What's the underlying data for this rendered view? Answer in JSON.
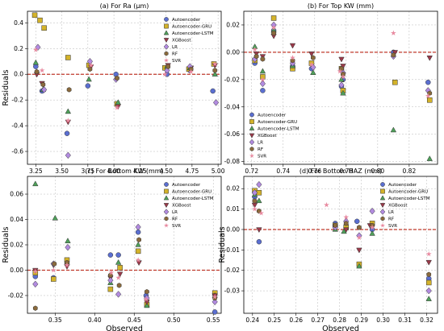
{
  "legend_entries": [
    {
      "name": "Autoencoder",
      "color": "#5b6fd1",
      "marker": "circle"
    },
    {
      "name": "Autoencoder-GRU",
      "color": "#d4b32a",
      "marker": "square"
    },
    {
      "name": "Autoencoder-LSTM",
      "color": "#4fa05a",
      "marker": "triangle-up"
    },
    {
      "name": "XGBoost",
      "color": "#9b3a4a",
      "marker": "triangle-down"
    },
    {
      "name": "LR",
      "color": "#b28be0",
      "marker": "diamond"
    },
    {
      "name": "RF",
      "color": "#8a6a3c",
      "marker": "hexagon"
    },
    {
      "name": "SVR",
      "color": "#e88aa0",
      "marker": "star"
    }
  ],
  "chart_data": [
    {
      "type": "scatter",
      "title": "(a) For Ra (μm)",
      "xlabel": "",
      "ylabel": "Residuals",
      "xlim": [
        3.17,
        5.03
      ],
      "ylim": [
        -0.7,
        0.49
      ],
      "xticks": [
        "3.25",
        "3.50",
        "3.75",
        "4.00",
        "4.25",
        "4.50",
        "4.75",
        "5.00"
      ],
      "xtick_values": [
        3.25,
        3.5,
        3.75,
        4.0,
        4.25,
        4.5,
        4.75,
        5.0
      ],
      "yticks": [
        "-0.6",
        "-0.4",
        "-0.2",
        "0.0",
        "0.2",
        "0.4"
      ],
      "ytick_values": [
        -0.6,
        -0.4,
        -0.2,
        0.0,
        0.2,
        0.4
      ],
      "legend": "top-right",
      "grid": true,
      "series": [
        {
          "name": "Autoencoder",
          "x": [
            3.25,
            3.31,
            3.55,
            3.75,
            4.02,
            4.51,
            4.73,
            4.95
          ],
          "y": [
            0.06,
            -0.13,
            -0.46,
            -0.09,
            0.0,
            0.0,
            0.03,
            -0.13
          ]
        },
        {
          "name": "Autoencoder-GRU",
          "x": [
            3.24,
            3.29,
            3.33,
            3.56,
            3.76,
            4.03,
            4.49,
            4.72,
            4.96
          ],
          "y": [
            0.46,
            0.42,
            0.36,
            0.13,
            0.07,
            -0.23,
            0.05,
            0.04,
            0.08
          ]
        },
        {
          "name": "Autoencoder-LSTM",
          "x": [
            3.25,
            3.32,
            3.56,
            3.76,
            4.04,
            4.51,
            4.73,
            4.97
          ],
          "y": [
            0.09,
            -0.12,
            -0.29,
            -0.04,
            -0.22,
            0.06,
            0.05,
            0.0
          ]
        },
        {
          "name": "XGBoost",
          "x": [
            3.26,
            3.31,
            3.56,
            3.78,
            4.04,
            4.52,
            4.74,
            4.97
          ],
          "y": [
            0.0,
            -0.07,
            -0.37,
            0.06,
            -0.25,
            0.07,
            0.05,
            0.07
          ]
        },
        {
          "name": "LR",
          "x": [
            3.27,
            3.33,
            3.56,
            3.77,
            4.02,
            4.51,
            4.73,
            4.98
          ],
          "y": [
            0.21,
            -0.12,
            -0.63,
            0.1,
            -0.04,
            0.03,
            0.06,
            -0.22
          ]
        },
        {
          "name": "RF",
          "x": [
            3.26,
            3.32,
            3.57,
            3.77,
            4.03,
            4.52,
            4.74,
            4.97
          ],
          "y": [
            0.02,
            -0.08,
            -0.12,
            0.04,
            -0.03,
            0.06,
            0.04,
            0.03
          ]
        },
        {
          "name": "SVR",
          "x": [
            3.25,
            3.31,
            3.56,
            3.78,
            4.03,
            4.49,
            4.74,
            4.97
          ],
          "y": [
            0.19,
            0.03,
            -0.36,
            0.07,
            -0.26,
            0.0,
            0.02,
            0.08
          ]
        }
      ]
    },
    {
      "type": "scatter",
      "title": "(b) For Top KW (mm)",
      "xlabel": "",
      "ylabel": "",
      "xlim": [
        0.715,
        0.838
      ],
      "ylim": [
        -0.082,
        0.03
      ],
      "xticks": [
        "0.72",
        "0.74",
        "0.76",
        "0.78",
        "0.80",
        "0.82"
      ],
      "xtick_values": [
        0.72,
        0.74,
        0.76,
        0.78,
        0.8,
        0.82
      ],
      "yticks": [
        "-0.08",
        "-0.06",
        "-0.04",
        "-0.02",
        "0.00",
        "0.02"
      ],
      "ytick_values": [
        -0.08,
        -0.06,
        -0.04,
        -0.02,
        0.0,
        0.02
      ],
      "legend": "bottom-left",
      "grid": true,
      "series": [
        {
          "name": "Autoencoder",
          "x": [
            0.722,
            0.727,
            0.734,
            0.746,
            0.758,
            0.777,
            0.778,
            0.81,
            0.832
          ],
          "y": [
            -0.008,
            -0.028,
            0.016,
            -0.01,
            -0.012,
            -0.025,
            -0.02,
            0.0,
            -0.022
          ]
        },
        {
          "name": "Autoencoder-GRU",
          "x": [
            0.722,
            0.727,
            0.734,
            0.746,
            0.758,
            0.777,
            0.778,
            0.811,
            0.833
          ],
          "y": [
            -0.006,
            -0.018,
            0.025,
            -0.012,
            -0.008,
            -0.012,
            -0.028,
            -0.022,
            -0.035
          ]
        },
        {
          "name": "Autoencoder-LSTM",
          "x": [
            0.722,
            0.727,
            0.734,
            0.746,
            0.759,
            0.777,
            0.778,
            0.81,
            0.833
          ],
          "y": [
            0.004,
            -0.014,
            0.016,
            -0.01,
            -0.015,
            -0.02,
            -0.03,
            -0.057,
            -0.078
          ]
        },
        {
          "name": "XGBoost",
          "x": [
            0.723,
            0.727,
            0.734,
            0.746,
            0.758,
            0.777,
            0.778,
            0.811,
            0.833
          ],
          "y": [
            -0.001,
            -0.003,
            0.012,
            0.005,
            -0.001,
            -0.005,
            -0.01,
            0.0,
            -0.004
          ]
        },
        {
          "name": "LR",
          "x": [
            0.722,
            0.727,
            0.734,
            0.746,
            0.759,
            0.777,
            0.778,
            0.81,
            0.832
          ],
          "y": [
            -0.005,
            -0.023,
            0.02,
            -0.008,
            -0.011,
            -0.024,
            -0.015,
            -0.003,
            -0.028
          ]
        },
        {
          "name": "RF",
          "x": [
            0.723,
            0.727,
            0.734,
            0.746,
            0.759,
            0.777,
            0.778,
            0.81,
            0.833
          ],
          "y": [
            -0.003,
            -0.005,
            0.014,
            -0.006,
            -0.004,
            -0.012,
            -0.016,
            -0.002,
            -0.03
          ]
        },
        {
          "name": "SVR",
          "x": [
            0.722,
            0.727,
            0.734,
            0.746,
            0.758,
            0.776,
            0.778,
            0.81,
            0.832
          ],
          "y": [
            0.002,
            -0.02,
            0.018,
            -0.004,
            -0.009,
            -0.014,
            -0.018,
            0.014,
            -0.032
          ]
        }
      ]
    },
    {
      "type": "scatter",
      "title": "(c) For Bottom KW (mm)",
      "xlabel": "Observed",
      "ylabel": "Residuals",
      "xlim": [
        0.315,
        0.56
      ],
      "ylim": [
        -0.034,
        0.074
      ],
      "xticks": [
        "0.35",
        "0.40",
        "0.45",
        "0.50",
        "0.55"
      ],
      "xtick_values": [
        0.35,
        0.4,
        0.45,
        0.5,
        0.55
      ],
      "yticks": [
        "-0.02",
        "0.00",
        "0.02",
        "0.04",
        "0.06"
      ],
      "ytick_values": [
        -0.02,
        0.0,
        0.02,
        0.04,
        0.06
      ],
      "legend": "top-right",
      "grid": true,
      "series": [
        {
          "name": "Autoencoder",
          "x": [
            0.325,
            0.348,
            0.365,
            0.42,
            0.43,
            0.455,
            0.465,
            0.552
          ],
          "y": [
            -0.005,
            -0.006,
            0.005,
            0.012,
            0.012,
            0.03,
            -0.02,
            -0.033
          ]
        },
        {
          "name": "Autoencoder-GRU",
          "x": [
            0.325,
            0.348,
            0.365,
            0.42,
            0.432,
            0.455,
            0.466,
            0.552
          ],
          "y": [
            -0.002,
            -0.007,
            0.008,
            -0.015,
            0.002,
            0.015,
            -0.027,
            -0.018
          ]
        },
        {
          "name": "Autoencoder-LSTM",
          "x": [
            0.325,
            0.35,
            0.366,
            0.42,
            0.43,
            0.455,
            0.466,
            0.552
          ],
          "y": [
            0.068,
            0.041,
            0.023,
            -0.01,
            0.006,
            0.02,
            -0.028,
            -0.02
          ]
        },
        {
          "name": "XGBoost",
          "x": [
            0.325,
            0.348,
            0.365,
            0.42,
            0.432,
            0.456,
            0.466,
            0.552
          ],
          "y": [
            0.0,
            0.004,
            0.003,
            -0.006,
            -0.003,
            0.006,
            -0.025,
            -0.02
          ]
        },
        {
          "name": "LR",
          "x": [
            0.325,
            0.348,
            0.366,
            0.42,
            0.43,
            0.455,
            0.466,
            0.552
          ],
          "y": [
            -0.011,
            0.005,
            0.018,
            -0.008,
            -0.019,
            0.034,
            -0.022,
            -0.025
          ]
        },
        {
          "name": "RF",
          "x": [
            0.325,
            0.349,
            0.365,
            0.42,
            0.431,
            0.456,
            0.466,
            0.552
          ],
          "y": [
            -0.03,
            0.005,
            0.006,
            -0.004,
            -0.012,
            0.024,
            -0.017,
            -0.022
          ]
        },
        {
          "name": "SVR",
          "x": [
            0.325,
            0.348,
            0.365,
            0.421,
            0.43,
            0.455,
            0.465,
            0.552
          ],
          "y": [
            -0.001,
            0.0,
            0.004,
            -0.002,
            -0.006,
            0.008,
            -0.023,
            -0.021
          ]
        }
      ]
    },
    {
      "type": "scatter",
      "title": "(d) For Bottom HAZ (mm)",
      "xlabel": "Observed",
      "ylabel": "Residuals",
      "xlim": [
        0.236,
        0.325
      ],
      "ylim": [
        -0.041,
        0.026
      ],
      "xticks": [
        "0.24",
        "0.25",
        "0.26",
        "0.27",
        "0.28",
        "0.29",
        "0.30",
        "0.31",
        "0.32"
      ],
      "xtick_values": [
        0.24,
        0.25,
        0.26,
        0.27,
        0.28,
        0.29,
        0.3,
        0.31,
        0.32
      ],
      "yticks": [
        "-0.03",
        "-0.02",
        "-0.01",
        "0.00",
        "0.01",
        "0.02"
      ],
      "ytick_values": [
        -0.03,
        -0.02,
        -0.01,
        0.0,
        0.01,
        0.02
      ],
      "legend": "top-right",
      "grid": true,
      "series": [
        {
          "name": "Autoencoder",
          "x": [
            0.241,
            0.243,
            0.278,
            0.283,
            0.288,
            0.295,
            0.321
          ],
          "y": [
            0.016,
            -0.006,
            0.003,
            0.002,
            0.004,
            0.0,
            -0.024
          ]
        },
        {
          "name": "Autoencoder-GRU",
          "x": [
            0.241,
            0.243,
            0.278,
            0.283,
            0.289,
            0.295,
            0.321
          ],
          "y": [
            0.019,
            0.018,
            0.002,
            0.001,
            -0.017,
            0.003,
            -0.026
          ]
        },
        {
          "name": "Autoencoder-LSTM",
          "x": [
            0.241,
            0.243,
            0.278,
            0.282,
            0.289,
            0.295,
            0.321
          ],
          "y": [
            0.017,
            0.014,
            0.0,
            -0.001,
            -0.018,
            -0.002,
            -0.034
          ]
        },
        {
          "name": "XGBoost",
          "x": [
            0.241,
            0.243,
            0.278,
            0.283,
            0.289,
            0.294,
            0.321
          ],
          "y": [
            0.012,
            0.0,
            0.001,
            0.0,
            -0.01,
            0.002,
            -0.016
          ]
        },
        {
          "name": "LR",
          "x": [
            0.241,
            0.243,
            0.278,
            0.283,
            0.289,
            0.295,
            0.321
          ],
          "y": [
            0.018,
            0.022,
            0.001,
            0.004,
            -0.003,
            0.009,
            -0.03
          ]
        },
        {
          "name": "RF",
          "x": [
            0.241,
            0.243,
            0.278,
            0.283,
            0.289,
            0.295,
            0.321
          ],
          "y": [
            0.014,
            0.009,
            0.002,
            0.003,
            0.001,
            0.002,
            -0.022
          ]
        },
        {
          "name": "SVR",
          "x": [
            0.241,
            0.244,
            0.274,
            0.283,
            0.289,
            0.295,
            0.321
          ],
          "y": [
            0.01,
            0.008,
            0.012,
            0.006,
            -0.004,
            0.001,
            -0.012
          ]
        }
      ]
    }
  ]
}
